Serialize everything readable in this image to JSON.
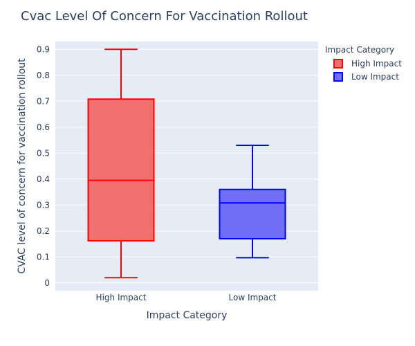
{
  "chart_data": {
    "type": "box",
    "title": "Cvac Level Of Concern For Vaccination Rollout",
    "xlabel": "Impact Category",
    "ylabel": "CVAC level of concern for vaccination rollout",
    "ylim": [
      -0.03,
      0.93
    ],
    "yticks": [
      0,
      0.1,
      0.2,
      0.3,
      0.4,
      0.5,
      0.6,
      0.7,
      0.8,
      0.9
    ],
    "ytick_labels": [
      "0",
      "0.1",
      "0.2",
      "0.3",
      "0.4",
      "0.5",
      "0.6",
      "0.7",
      "0.8",
      "0.9"
    ],
    "categories": [
      "High Impact",
      "Low Impact"
    ],
    "legend": {
      "title": "Impact Category",
      "position": "top-right"
    },
    "grid": true,
    "background": "#e5ecf6",
    "series": [
      {
        "name": "High Impact",
        "category": "High Impact",
        "min": 0.02,
        "q1": 0.162,
        "median": 0.395,
        "q3": 0.708,
        "max": 0.9,
        "line_color": "#ff0000",
        "fill_color": "#f07070"
      },
      {
        "name": "Low Impact",
        "category": "Low Impact",
        "min": 0.097,
        "q1": 0.17,
        "median": 0.308,
        "q3": 0.36,
        "max": 0.53,
        "line_color": "#0000ff",
        "fill_color": "#7070f5"
      }
    ]
  }
}
